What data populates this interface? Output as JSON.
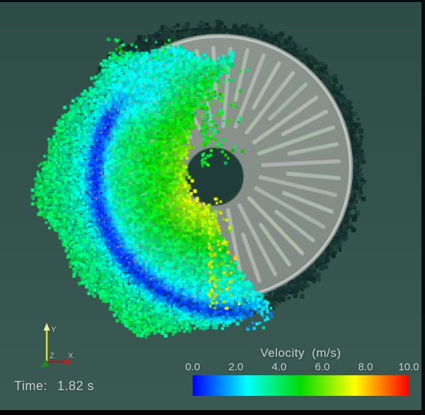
{
  "scene": {
    "background_color": "#33534d",
    "time": {
      "label": "Time:",
      "value": "1.82 s"
    },
    "colorbar": {
      "title": "Velocity (m/s)",
      "ticks": [
        "0.0",
        "2.0",
        "4.0",
        "6.0",
        "8.0",
        "10.0"
      ],
      "colormap": [
        "#0000ff",
        "#00ffff",
        "#00dc00",
        "#ffff00",
        "#ff0000"
      ]
    },
    "axes": {
      "x": {
        "label": "X",
        "color": "#c22020"
      },
      "y": {
        "label": "Y",
        "color": "#d6e432"
      },
      "z": {
        "label": "Z",
        "color": "#1e8a1e"
      }
    }
  }
}
